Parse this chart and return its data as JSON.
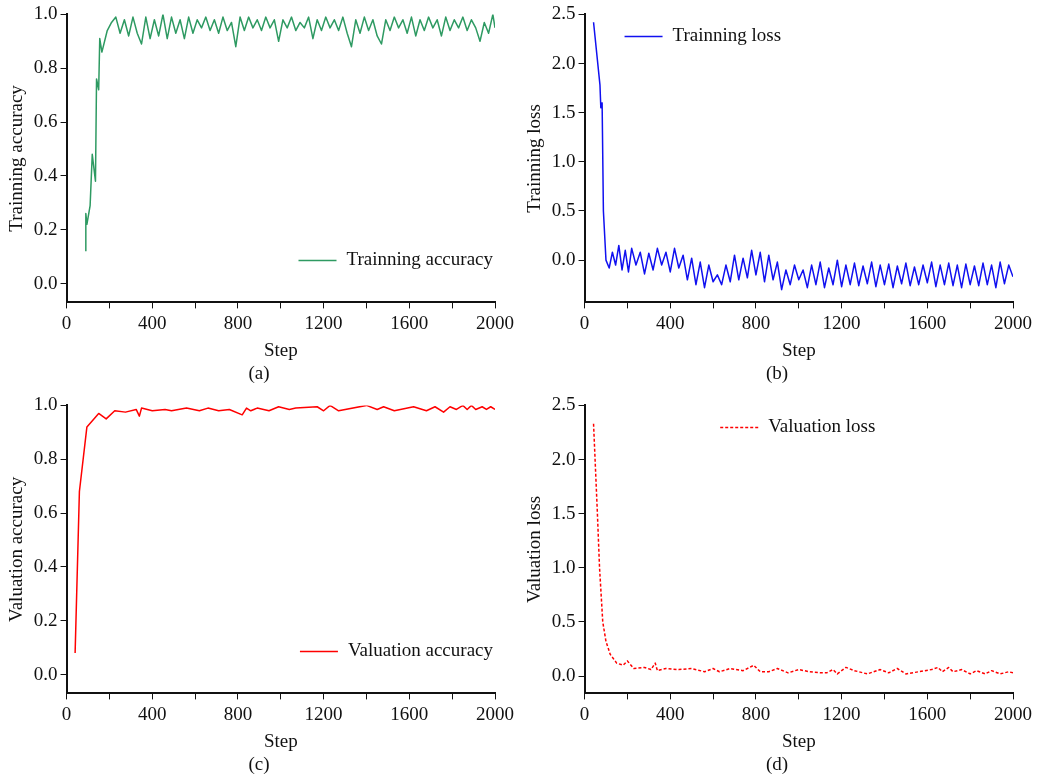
{
  "chart_data": [
    {
      "type": "line",
      "xlabel": "Step",
      "ylabel": "Trainning accuracy",
      "annotations": [
        "(a)"
      ],
      "legend": "bottom right",
      "line_style": "solid",
      "xlim": [
        0,
        2000
      ],
      "ylim": [
        -0.07,
        1.0
      ],
      "xticks": [
        0,
        {
          "value": 200,
          "label": null
        },
        400,
        {
          "value": 600,
          "label": null
        },
        800,
        {
          "value": 1000,
          "label": null
        },
        1200,
        {
          "value": 1400,
          "label": null
        },
        1600,
        {
          "value": 1800,
          "label": null
        },
        2000
      ],
      "yticks": [
        {
          "value": 0,
          "label": "0.0"
        },
        0.2,
        0.4,
        0.6,
        0.8,
        {
          "value": 1,
          "label": "1.0"
        }
      ],
      "series": [
        {
          "name": "Trainning accuracy",
          "color": "#2e9a62",
          "x": [
            90,
            90,
            95,
            110,
            120,
            135,
            140,
            150,
            155,
            165,
            190,
            210,
            230,
            250,
            270,
            290,
            310,
            330,
            350,
            370,
            390,
            410,
            430,
            450,
            470,
            490,
            510,
            530,
            550,
            570,
            590,
            610,
            630,
            650,
            670,
            690,
            710,
            730,
            750,
            770,
            790,
            810,
            830,
            850,
            870,
            890,
            910,
            930,
            950,
            970,
            990,
            1010,
            1030,
            1050,
            1070,
            1090,
            1110,
            1130,
            1150,
            1170,
            1190,
            1210,
            1230,
            1250,
            1270,
            1290,
            1310,
            1330,
            1350,
            1370,
            1390,
            1410,
            1430,
            1450,
            1470,
            1490,
            1510,
            1530,
            1550,
            1570,
            1590,
            1610,
            1630,
            1650,
            1670,
            1690,
            1710,
            1730,
            1750,
            1770,
            1790,
            1810,
            1830,
            1850,
            1870,
            1890,
            1910,
            1930,
            1950,
            1970,
            1990,
            2000
          ],
          "values": [
            0.12,
            0.26,
            0.22,
            0.29,
            0.48,
            0.38,
            0.76,
            0.72,
            0.91,
            0.86,
            0.94,
            0.97,
            0.99,
            0.93,
            0.98,
            0.92,
            0.99,
            0.93,
            0.89,
            0.99,
            0.91,
            0.98,
            0.92,
            1.0,
            0.91,
            0.99,
            0.93,
            0.98,
            0.91,
            0.99,
            0.93,
            0.98,
            0.95,
            0.99,
            0.94,
            0.98,
            0.93,
            0.99,
            0.94,
            0.97,
            0.88,
            0.99,
            0.94,
            0.99,
            0.95,
            0.98,
            0.94,
            0.99,
            0.95,
            0.98,
            0.9,
            0.98,
            0.95,
            0.99,
            0.94,
            0.97,
            0.95,
            0.99,
            0.91,
            0.98,
            0.94,
            0.99,
            0.95,
            0.98,
            0.94,
            0.99,
            0.93,
            0.88,
            0.98,
            0.93,
            0.99,
            0.94,
            0.98,
            0.92,
            0.89,
            0.98,
            0.94,
            0.99,
            0.95,
            0.98,
            0.93,
            0.99,
            0.92,
            0.98,
            0.94,
            0.99,
            0.95,
            0.98,
            0.92,
            0.99,
            0.94,
            0.98,
            0.95,
            0.99,
            0.94,
            0.98,
            0.95,
            0.9,
            0.97,
            0.93,
            1.0,
            0.95
          ]
        }
      ]
    },
    {
      "type": "line",
      "xlabel": "Step",
      "ylabel": "Trainning loss",
      "annotations": [
        "(b)"
      ],
      "legend": "top left",
      "line_style": "solid",
      "xlim": [
        0,
        2000
      ],
      "ylim": [
        -0.43,
        2.5
      ],
      "xticks": [
        0,
        {
          "value": 200,
          "label": null
        },
        400,
        {
          "value": 600,
          "label": null
        },
        800,
        {
          "value": 1000,
          "label": null
        },
        1200,
        {
          "value": 1400,
          "label": null
        },
        1600,
        {
          "value": 1800,
          "label": null
        },
        2000
      ],
      "yticks": [
        {
          "value": 0,
          "label": "0.0"
        },
        0.5,
        {
          "value": 1,
          "label": "1.0"
        },
        1.5,
        {
          "value": 2,
          "label": "2.0"
        },
        2.5
      ],
      "series": [
        {
          "name": "Trainning loss",
          "color": "#1010f0",
          "x": [
            42,
            72,
            76,
            82,
            88,
            100,
            115,
            130,
            145,
            160,
            175,
            190,
            205,
            220,
            240,
            260,
            280,
            300,
            320,
            340,
            360,
            380,
            400,
            420,
            440,
            460,
            480,
            500,
            520,
            540,
            560,
            580,
            600,
            620,
            640,
            660,
            680,
            700,
            720,
            740,
            760,
            780,
            800,
            820,
            840,
            860,
            880,
            900,
            920,
            940,
            960,
            980,
            1000,
            1020,
            1040,
            1060,
            1080,
            1100,
            1120,
            1140,
            1160,
            1180,
            1200,
            1220,
            1240,
            1260,
            1280,
            1300,
            1320,
            1340,
            1360,
            1380,
            1400,
            1420,
            1440,
            1460,
            1480,
            1500,
            1520,
            1540,
            1560,
            1580,
            1600,
            1620,
            1640,
            1660,
            1680,
            1700,
            1720,
            1740,
            1760,
            1780,
            1800,
            1820,
            1840,
            1860,
            1880,
            1900,
            1920,
            1940,
            1960,
            1980,
            2000
          ],
          "values": [
            2.42,
            1.78,
            1.55,
            1.6,
            0.5,
            0.0,
            -0.08,
            0.08,
            -0.05,
            0.15,
            -0.1,
            0.1,
            -0.12,
            0.12,
            -0.05,
            0.08,
            -0.14,
            0.07,
            -0.1,
            0.12,
            -0.05,
            0.08,
            -0.12,
            0.12,
            -0.08,
            0.05,
            -0.2,
            0.02,
            -0.25,
            -0.02,
            -0.28,
            -0.05,
            -0.22,
            -0.15,
            -0.25,
            -0.05,
            -0.22,
            0.05,
            -0.2,
            0.02,
            -0.18,
            0.1,
            -0.15,
            0.08,
            -0.22,
            0.05,
            -0.2,
            -0.02,
            -0.3,
            -0.1,
            -0.25,
            -0.05,
            -0.2,
            -0.1,
            -0.28,
            -0.05,
            -0.25,
            -0.02,
            -0.28,
            -0.08,
            -0.25,
            0.0,
            -0.27,
            -0.05,
            -0.25,
            -0.03,
            -0.26,
            -0.06,
            -0.24,
            -0.02,
            -0.27,
            -0.05,
            -0.25,
            -0.04,
            -0.28,
            -0.06,
            -0.24,
            -0.03,
            -0.26,
            -0.07,
            -0.25,
            -0.05,
            -0.23,
            -0.02,
            -0.27,
            -0.05,
            -0.25,
            -0.03,
            -0.26,
            -0.05,
            -0.28,
            -0.04,
            -0.25,
            -0.06,
            -0.26,
            -0.03,
            -0.25,
            -0.05,
            -0.28,
            -0.02,
            -0.24,
            -0.05,
            -0.17
          ]
        }
      ]
    },
    {
      "type": "line",
      "xlabel": "Step",
      "ylabel": "Valuation accuracy",
      "annotations": [
        "(c)"
      ],
      "legend": "bottom right",
      "line_style": "solid",
      "xlim": [
        0,
        2000
      ],
      "ylim": [
        -0.07,
        1.0
      ],
      "xticks": [
        0,
        {
          "value": 200,
          "label": null
        },
        400,
        {
          "value": 600,
          "label": null
        },
        800,
        {
          "value": 1000,
          "label": null
        },
        1200,
        {
          "value": 1400,
          "label": null
        },
        1600,
        {
          "value": 1800,
          "label": null
        },
        2000
      ],
      "yticks": [
        {
          "value": 0,
          "label": "0.0"
        },
        0.2,
        0.4,
        0.6,
        0.8,
        {
          "value": 1,
          "label": "1.0"
        }
      ],
      "series": [
        {
          "name": "Valuation accuracy",
          "color": "#ff0000",
          "x": [
            40,
            60,
            95,
            150,
            185,
            225,
            275,
            325,
            340,
            350,
            400,
            460,
            490,
            560,
            620,
            660,
            710,
            760,
            820,
            840,
            860,
            890,
            945,
            990,
            1040,
            1070,
            1170,
            1200,
            1230,
            1270,
            1400,
            1450,
            1480,
            1530,
            1620,
            1680,
            1720,
            1760,
            1790,
            1820,
            1850,
            1870,
            1890,
            1910,
            1940,
            1960,
            1980,
            2000
          ],
          "values": [
            0.08,
            0.68,
            0.92,
            0.97,
            0.95,
            0.98,
            0.975,
            0.985,
            0.96,
            0.99,
            0.98,
            0.985,
            0.98,
            0.99,
            0.98,
            0.99,
            0.98,
            0.985,
            0.965,
            0.99,
            0.98,
            0.99,
            0.98,
            0.995,
            0.985,
            0.99,
            0.995,
            0.98,
            1.0,
            0.98,
            1.0,
            0.985,
            0.995,
            0.98,
            0.995,
            0.98,
            0.995,
            0.975,
            0.995,
            0.985,
            1.0,
            0.985,
            1.0,
            0.985,
            0.995,
            0.985,
            0.995,
            0.985
          ]
        }
      ]
    },
    {
      "type": "line",
      "xlabel": "Step",
      "ylabel": "Valuation loss",
      "annotations": [
        "(d)"
      ],
      "legend": "top",
      "line_style": "dashed",
      "xlim": [
        0,
        2000
      ],
      "ylim": [
        -0.16,
        2.5
      ],
      "xticks": [
        0,
        {
          "value": 200,
          "label": null
        },
        400,
        {
          "value": 600,
          "label": null
        },
        800,
        {
          "value": 1000,
          "label": null
        },
        1200,
        {
          "value": 1400,
          "label": null
        },
        1600,
        {
          "value": 1800,
          "label": null
        },
        2000
      ],
      "yticks": [
        {
          "value": 0,
          "label": "0.0"
        },
        0.5,
        {
          "value": 1,
          "label": "1.0"
        },
        1.5,
        {
          "value": 2,
          "label": "2.0"
        },
        2.5
      ],
      "series": [
        {
          "name": "Valuation loss",
          "color": "#ff0000",
          "x": [
            42,
            60,
            70,
            85,
            100,
            120,
            150,
            180,
            200,
            230,
            280,
            310,
            330,
            340,
            380,
            440,
            500,
            560,
            600,
            630,
            680,
            740,
            790,
            800,
            820,
            860,
            900,
            950,
            1000,
            1050,
            1100,
            1130,
            1160,
            1180,
            1220,
            1260,
            1320,
            1380,
            1420,
            1460,
            1500,
            1560,
            1620,
            1650,
            1670,
            1700,
            1720,
            1760,
            1800,
            1830,
            1870,
            1900,
            1940,
            1980,
            2000
          ],
          "values": [
            2.33,
            1.5,
            1.0,
            0.5,
            0.32,
            0.2,
            0.12,
            0.1,
            0.14,
            0.07,
            0.08,
            0.06,
            0.12,
            0.05,
            0.07,
            0.06,
            0.07,
            0.04,
            0.07,
            0.04,
            0.07,
            0.05,
            0.1,
            0.08,
            0.04,
            0.04,
            0.07,
            0.03,
            0.06,
            0.04,
            0.03,
            0.03,
            0.06,
            0.02,
            0.08,
            0.05,
            0.02,
            0.06,
            0.03,
            0.07,
            0.02,
            0.04,
            0.06,
            0.08,
            0.04,
            0.08,
            0.04,
            0.06,
            0.02,
            0.05,
            0.02,
            0.05,
            0.02,
            0.04,
            0.03
          ]
        }
      ]
    }
  ]
}
